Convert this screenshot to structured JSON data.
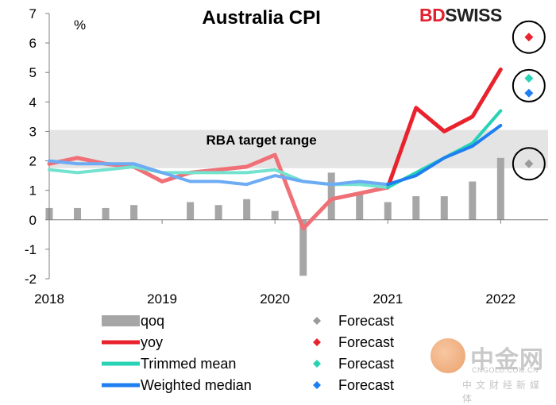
{
  "brand": {
    "bd": "BD",
    "swiss": "SWISS"
  },
  "watermark": {
    "name": "中金网",
    "url": "CNGOLD.COM.CN",
    "sub": "中文财经新媒体"
  },
  "chart_data": {
    "type": "line",
    "title": "Australia CPI",
    "ylabel": "%",
    "ylim": [
      -2,
      7
    ],
    "yticks": [
      -2,
      -1,
      0,
      1,
      2,
      3,
      4,
      5,
      6,
      7
    ],
    "xlim": [
      2018.0,
      2022.42
    ],
    "xticks": [
      2018,
      2019,
      2020,
      2021,
      2022
    ],
    "target_band": {
      "label": "RBA target range",
      "range": [
        1.75,
        3.05
      ]
    },
    "bars": {
      "name": "qoq",
      "color": "#a6a6a6",
      "x": [
        2018.0,
        2018.25,
        2018.5,
        2018.75,
        2019.25,
        2019.5,
        2019.75,
        2020.0,
        2020.25,
        2020.5,
        2020.75,
        2021.0,
        2021.25,
        2021.5,
        2021.75,
        2022.0
      ],
      "values": [
        0.4,
        0.4,
        0.4,
        0.5,
        0.6,
        0.5,
        0.7,
        0.3,
        -1.9,
        1.6,
        0.9,
        0.6,
        0.8,
        0.8,
        1.3,
        2.1
      ]
    },
    "series": [
      {
        "name": "yoy",
        "color": "#e8232e",
        "width": 5,
        "faded_until": 2021.0,
        "x": [
          2018.0,
          2018.25,
          2018.5,
          2018.75,
          2019.0,
          2019.25,
          2019.5,
          2019.75,
          2020.0,
          2020.25,
          2020.5,
          2020.75,
          2021.0,
          2021.25,
          2021.5,
          2021.75,
          2022.0
        ],
        "values": [
          1.9,
          2.1,
          1.9,
          1.8,
          1.3,
          1.6,
          1.7,
          1.8,
          2.2,
          -0.3,
          0.7,
          0.9,
          1.1,
          3.8,
          3.0,
          3.5,
          5.1
        ]
      },
      {
        "name": "Trimmed mean",
        "color": "#27d3b4",
        "width": 4,
        "faded_until": 2021.0,
        "x": [
          2018.0,
          2018.25,
          2018.5,
          2018.75,
          2019.0,
          2019.25,
          2019.5,
          2019.75,
          2020.0,
          2020.25,
          2020.5,
          2020.75,
          2021.0,
          2021.25,
          2021.5,
          2021.75,
          2022.0
        ],
        "values": [
          1.7,
          1.6,
          1.7,
          1.8,
          1.6,
          1.6,
          1.6,
          1.6,
          1.7,
          1.3,
          1.2,
          1.2,
          1.1,
          1.6,
          2.1,
          2.6,
          3.7
        ]
      },
      {
        "name": "Weighted median",
        "color": "#1f7ef0",
        "width": 4,
        "faded_until": 2021.0,
        "x": [
          2018.0,
          2018.25,
          2018.5,
          2018.75,
          2019.0,
          2019.25,
          2019.5,
          2019.75,
          2020.0,
          2020.25,
          2020.5,
          2020.75,
          2021.0,
          2021.25,
          2021.5,
          2021.75,
          2022.0
        ],
        "values": [
          2.0,
          1.9,
          1.9,
          1.9,
          1.6,
          1.3,
          1.3,
          1.2,
          1.5,
          1.3,
          1.2,
          1.3,
          1.2,
          1.5,
          2.1,
          2.5,
          3.2
        ]
      }
    ],
    "forecasts": [
      {
        "name": "qoq",
        "value": 1.9,
        "color": "#9a9a9a"
      },
      {
        "name": "yoy",
        "value": 6.2,
        "color": "#e8232e"
      },
      {
        "name": "Trimmed mean",
        "value": 4.8,
        "color": "#27d3b4"
      },
      {
        "name": "Weighted median",
        "value": 4.3,
        "color": "#1f7ef0"
      }
    ],
    "forecast_x": 2022.25,
    "legend": {
      "placement": "bottom",
      "entries": [
        {
          "label": "qoq",
          "color": "#a6a6a6",
          "kind": "bar",
          "forecast_label": "Forecast",
          "forecast_color": "#9a9a9a"
        },
        {
          "label": "yoy",
          "color": "#e8232e",
          "kind": "line",
          "forecast_label": "Forecast",
          "forecast_color": "#e8232e"
        },
        {
          "label": "Trimmed mean",
          "color": "#27d3b4",
          "kind": "line",
          "forecast_label": "Forecast",
          "forecast_color": "#27d3b4"
        },
        {
          "label": "Weighted median",
          "color": "#1f7ef0",
          "kind": "line",
          "forecast_label": "Forecast",
          "forecast_color": "#1f7ef0"
        }
      ]
    }
  }
}
